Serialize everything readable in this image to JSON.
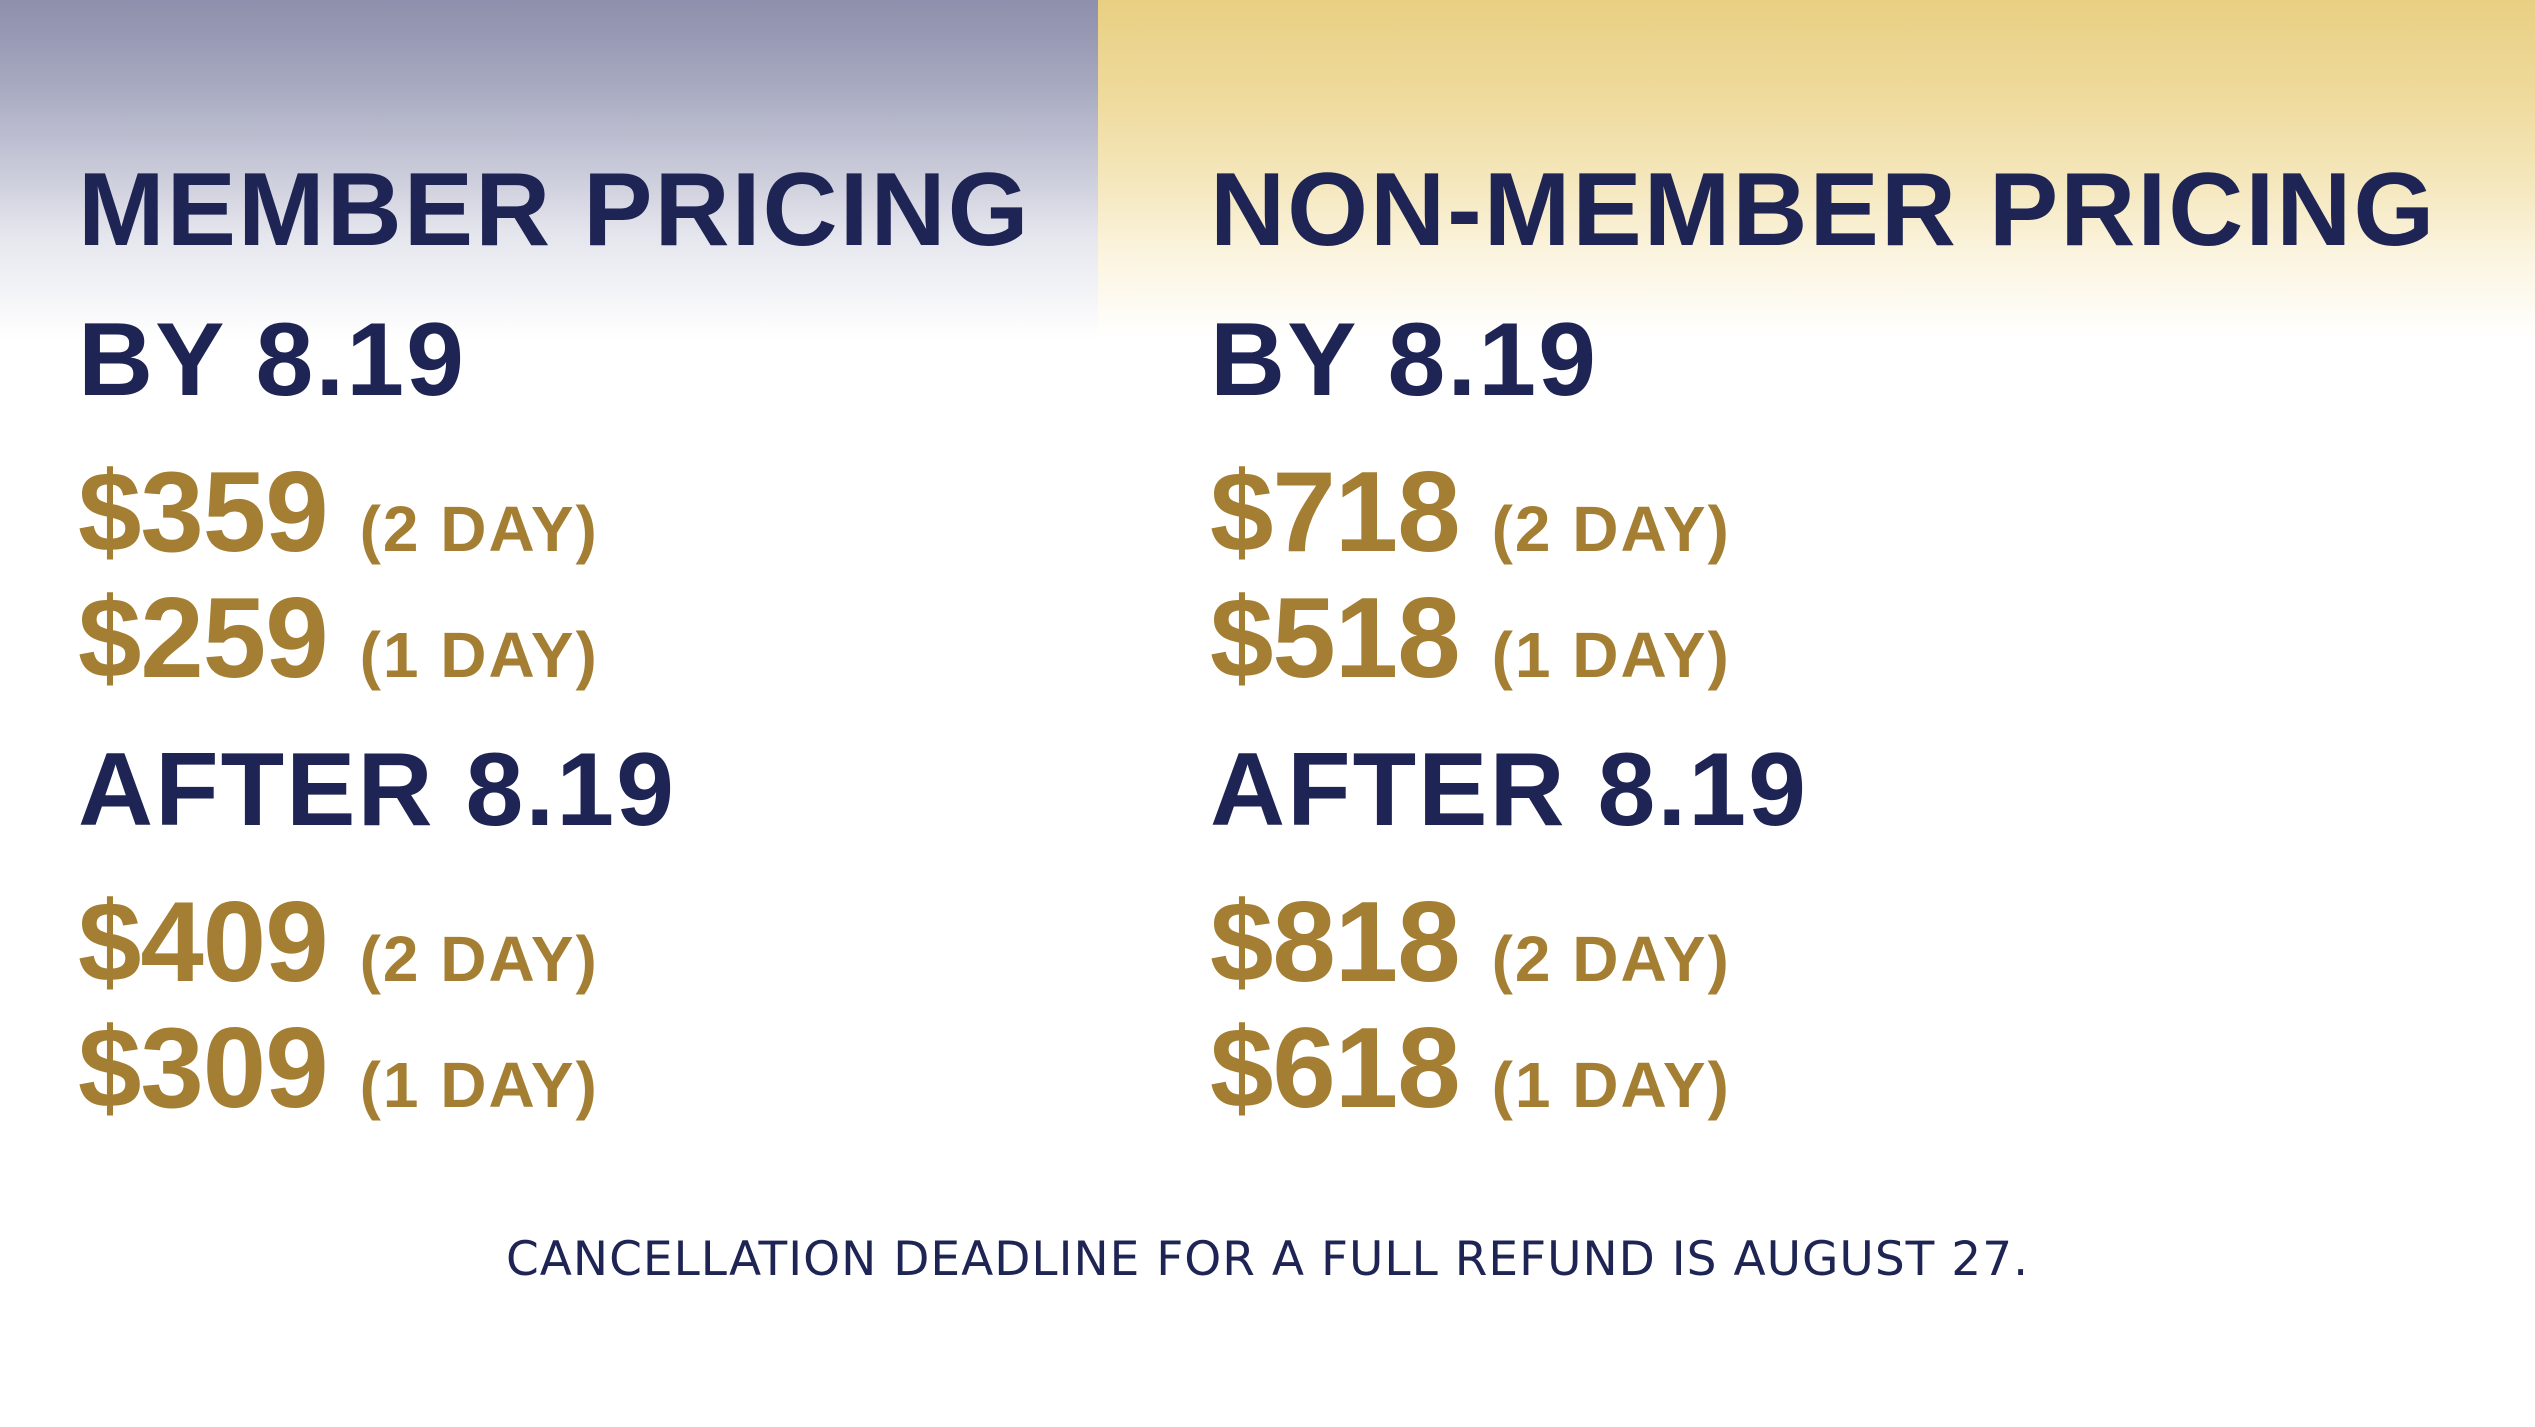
{
  "colors": {
    "navy": "#1e2454",
    "gold": "#a47f33",
    "left_band": "#8d8fac",
    "right_band": "#e8cf82"
  },
  "member": {
    "title": "MEMBER PRICING",
    "early_heading": "BY 8.19",
    "early_prices": [
      {
        "amount": "$359",
        "days": "(2 DAY)"
      },
      {
        "amount": "$259",
        "days": "(1 DAY)"
      }
    ],
    "late_heading": "AFTER 8.19",
    "late_prices": [
      {
        "amount": "$409",
        "days": "(2 DAY)"
      },
      {
        "amount": "$309",
        "days": "(1 DAY)"
      }
    ]
  },
  "non_member": {
    "title": "NON-MEMBER PRICING",
    "early_heading": "BY 8.19",
    "early_prices": [
      {
        "amount": "$718",
        "days": "(2 DAY)"
      },
      {
        "amount": "$518",
        "days": "(1 DAY)"
      }
    ],
    "late_heading": "AFTER 8.19",
    "late_prices": [
      {
        "amount": "$818",
        "days": "(2 DAY)"
      },
      {
        "amount": "$618",
        "days": "(1 DAY)"
      }
    ]
  },
  "footer": {
    "note": "CANCELLATION DEADLINE FOR A FULL REFUND IS AUGUST 27."
  }
}
